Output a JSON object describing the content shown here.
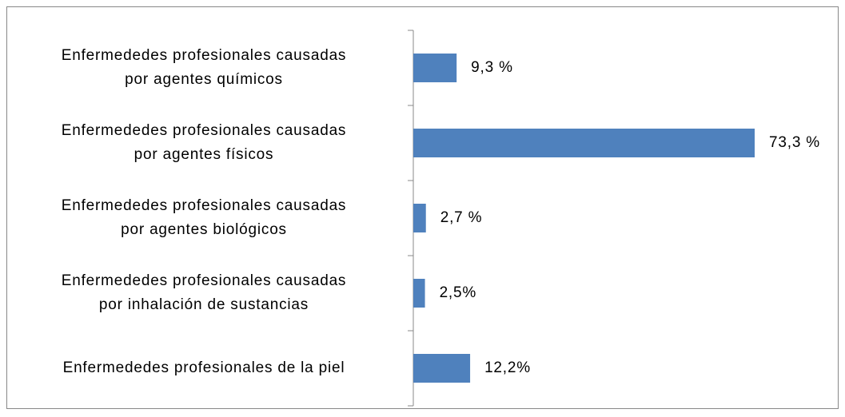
{
  "chart_data": {
    "type": "bar",
    "orientation": "horizontal",
    "categories": [
      "Enfermededes profesionales causadas\npor agentes químicos",
      "Enfermededes profesionales causadas\npor agentes físicos",
      "Enfermededes profesionales causadas\npor agentes biológicos",
      "Enfermededes profesionales causadas\npor inhalación de sustancias",
      "Enfermededes profesionales  de la piel"
    ],
    "values": [
      9.3,
      73.3,
      2.7,
      2.5,
      12.2
    ],
    "value_labels": [
      "9,3 %",
      "73,3 %",
      "2,7 %",
      "2,5%",
      "12,2%"
    ],
    "color": "#4f81bd"
  }
}
